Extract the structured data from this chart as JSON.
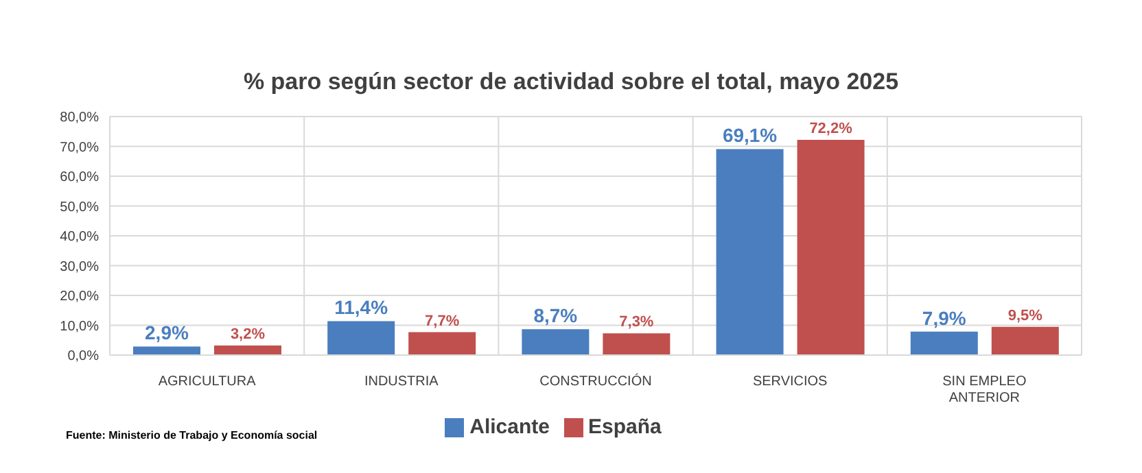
{
  "chart_data": {
    "type": "bar",
    "title": "% paro según sector de actividad sobre el total, mayo 2025",
    "categories": [
      "AGRICULTURA",
      "INDUSTRIA",
      "CONSTRUCCIÓN",
      "SERVICIOS",
      "SIN EMPLEO ANTERIOR"
    ],
    "series": [
      {
        "name": "Alicante",
        "color": "#4a7ebf",
        "values": [
          2.9,
          11.4,
          8.7,
          69.1,
          7.9
        ],
        "value_labels": [
          "2,9%",
          "11,4%",
          "8,7%",
          "69,1%",
          "7,9%"
        ]
      },
      {
        "name": "España",
        "color": "#c0504d",
        "values": [
          3.2,
          7.7,
          7.3,
          72.2,
          9.5
        ],
        "value_labels": [
          "3,2%",
          "7,7%",
          "7,3%",
          "72,2%",
          "9,5%"
        ]
      }
    ],
    "ylim": [
      0,
      80
    ],
    "yticks": [
      {
        "value": 0,
        "label": "0,0%"
      },
      {
        "value": 10,
        "label": "10,0%"
      },
      {
        "value": 20,
        "label": "20,0%"
      },
      {
        "value": 30,
        "label": "30,0%"
      },
      {
        "value": 40,
        "label": "40,0%"
      },
      {
        "value": 50,
        "label": "50,0%"
      },
      {
        "value": 60,
        "label": "60,0%"
      },
      {
        "value": 70,
        "label": "70,0%"
      },
      {
        "value": 80,
        "label": "80,0%"
      }
    ],
    "grid": true,
    "legend": "bottom",
    "annotations": [
      "Fuente: Ministerio de Trabajo y Economía social"
    ]
  }
}
